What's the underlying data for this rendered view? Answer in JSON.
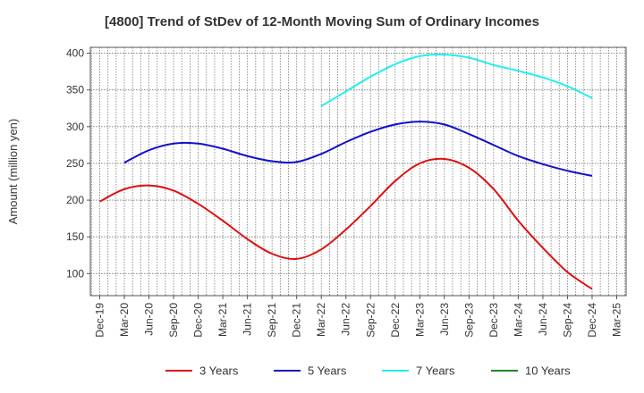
{
  "chart_data": {
    "type": "line",
    "title": "[4800]  Trend of StDev of 12-Month Moving Sum of Ordinary Incomes",
    "xlabel": "",
    "ylabel": "Amount (million yen)",
    "ylim": [
      70,
      408
    ],
    "yticks": [
      100,
      150,
      200,
      250,
      300,
      350,
      400
    ],
    "ytick_labels": [
      "100",
      "150",
      "200",
      "250",
      "300",
      "350",
      "400"
    ],
    "categories": [
      "Dec-19",
      "Mar-20",
      "Jun-20",
      "Sep-20",
      "Dec-20",
      "Mar-21",
      "Jun-21",
      "Sep-21",
      "Dec-21",
      "Mar-22",
      "Jun-22",
      "Sep-22",
      "Dec-22",
      "Mar-23",
      "Jun-23",
      "Sep-23",
      "Dec-23",
      "Mar-24",
      "Jun-24",
      "Sep-24",
      "Dec-24",
      "Mar-25"
    ],
    "grid": true,
    "legend_position": "bottom",
    "series": [
      {
        "name": "3 Years",
        "color": "#dd1111",
        "values": [
          198,
          215,
          220,
          213,
          195,
          172,
          147,
          127,
          120,
          133,
          160,
          192,
          226,
          250,
          256,
          244,
          215,
          172,
          135,
          102,
          79,
          null
        ]
      },
      {
        "name": "5 Years",
        "color": "#1111cc",
        "values": [
          null,
          251,
          268,
          277,
          277,
          270,
          260,
          253,
          252,
          263,
          279,
          293,
          303,
          307,
          303,
          290,
          275,
          260,
          249,
          240,
          233,
          null
        ]
      },
      {
        "name": "7 Years",
        "color": "#22eeee",
        "values": [
          null,
          null,
          null,
          null,
          null,
          null,
          null,
          null,
          null,
          328,
          348,
          368,
          385,
          396,
          398,
          394,
          384,
          376,
          367,
          355,
          339,
          null
        ]
      },
      {
        "name": "10 Years",
        "color": "#228822",
        "values": [
          null,
          null,
          null,
          null,
          null,
          null,
          null,
          null,
          null,
          null,
          null,
          null,
          null,
          null,
          null,
          null,
          null,
          null,
          null,
          null,
          null,
          null
        ]
      }
    ]
  }
}
